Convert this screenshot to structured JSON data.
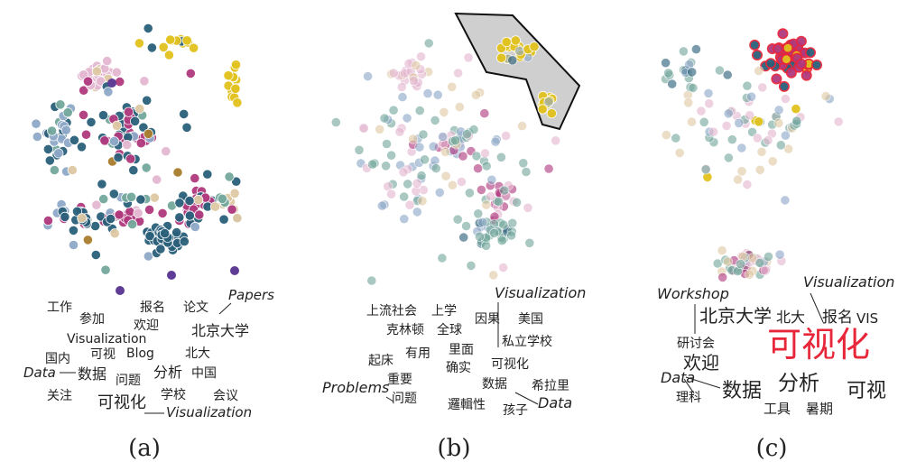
{
  "panels": [
    {
      "caption": "(a)",
      "words": [
        "工作",
        "参加",
        "报名",
        "论文",
        "Papers",
        "欢迎",
        "Visualization",
        "北京大学",
        "国内",
        "可视",
        "Blog",
        "北大",
        "Data",
        "数据",
        "问题",
        "分析",
        "中国",
        "关注",
        "可视化",
        "学校",
        "会议",
        "Visualization"
      ]
    },
    {
      "caption": "(b)",
      "words": [
        "Visualization",
        "上流社会",
        "上学",
        "因果",
        "美国",
        "克林顿",
        "全球",
        "私立学校",
        "有用",
        "里面",
        "起床",
        "确实",
        "可视化",
        "重要",
        "数据",
        "希拉里",
        "Problems",
        "问题",
        "邏輯性",
        "孩子",
        "Data"
      ]
    },
    {
      "caption": "(c)",
      "words": [
        "Workshop",
        "Visualization",
        "北京大学",
        "北大",
        "报名",
        "VIS",
        "研讨会",
        "可视化",
        "欢迎",
        "Data",
        "数据",
        "分析",
        "可视",
        "理科",
        "工具",
        "暑期"
      ]
    }
  ],
  "colors": {
    "dark_teal": "#2a5f7a",
    "magenta": "#b0397e",
    "gold": "#e2c21e",
    "light_blue": "#8fa9c9",
    "sage": "#74a89c",
    "tan": "#dfc9a4",
    "pink": "#e4b8d1",
    "brown": "#a97d2e",
    "purple": "#5f3c95",
    "highlight_red": "#e8263a",
    "lasso_fill": "#cfcfcf"
  }
}
